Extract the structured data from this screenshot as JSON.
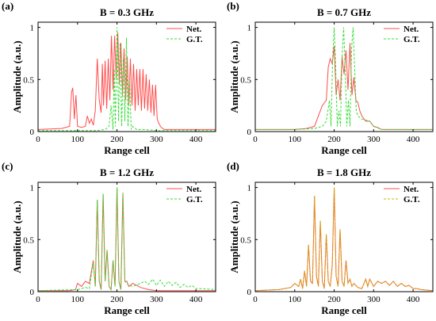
{
  "chart_data": [
    {
      "type": "line",
      "panel_label": "(a)",
      "title": "B = 0.3 GHz",
      "xlabel": "Range cell",
      "ylabel": "Amplitude (a.u.)",
      "xlim": [
        0,
        450
      ],
      "ylim": [
        0,
        1.05
      ],
      "xticks": [
        "0",
        "100",
        "200",
        "300",
        "400"
      ],
      "yticks": [
        "0",
        "0.5",
        "1"
      ],
      "legend_position": "top-right",
      "colors": {
        "net": "#ff4d4d",
        "gt": "#33dd33"
      },
      "series": [
        {
          "name": "Net.",
          "style": "solid",
          "x": [
            0,
            60,
            80,
            85,
            88,
            92,
            96,
            100,
            110,
            120,
            125,
            130,
            135,
            140,
            145,
            150,
            155,
            160,
            163,
            166,
            170,
            174,
            178,
            182,
            186,
            190,
            194,
            198,
            202,
            206,
            210,
            214,
            218,
            222,
            226,
            230,
            234,
            238,
            242,
            246,
            250,
            254,
            258,
            262,
            266,
            270,
            274,
            278,
            282,
            286,
            290,
            294,
            298,
            302,
            306,
            312,
            320,
            450
          ],
          "y": [
            0.02,
            0.03,
            0.05,
            0.38,
            0.42,
            0.12,
            0.35,
            0.05,
            0.04,
            0.05,
            0.15,
            0.08,
            0.12,
            0.06,
            0.2,
            0.7,
            0.3,
            0.18,
            0.65,
            0.25,
            0.68,
            0.22,
            0.7,
            0.3,
            0.92,
            0.4,
            0.92,
            0.5,
            0.95,
            0.45,
            0.85,
            0.35,
            0.8,
            0.3,
            0.72,
            0.25,
            0.7,
            0.25,
            0.65,
            0.2,
            0.6,
            0.25,
            0.6,
            0.2,
            0.6,
            0.22,
            0.55,
            0.2,
            0.5,
            0.18,
            0.45,
            0.15,
            0.45,
            0.12,
            0.08,
            0.04,
            0.02,
            0.02
          ]
        },
        {
          "name": "G.T.",
          "style": "dashed",
          "x": [
            0,
            150,
            170,
            180,
            185,
            190,
            193,
            196,
            200,
            204,
            208,
            212,
            216,
            220,
            224,
            228,
            232,
            236,
            240,
            250,
            270,
            300,
            450
          ],
          "y": [
            0.01,
            0.01,
            0.02,
            0.05,
            0.25,
            0.02,
            0.6,
            0.05,
            1.0,
            0.1,
            0.85,
            0.05,
            0.7,
            0.1,
            0.9,
            0.05,
            0.5,
            0.02,
            0.05,
            0.02,
            0.02,
            0.01,
            0.01
          ]
        }
      ]
    },
    {
      "type": "line",
      "panel_label": "(b)",
      "title": "B = 0.7 GHz",
      "xlabel": "Range cell",
      "ylabel": "Amplitude (a.u.)",
      "xlim": [
        0,
        450
      ],
      "ylim": [
        0,
        1.05
      ],
      "xticks": [
        "0",
        "100",
        "200",
        "300",
        "400"
      ],
      "yticks": [
        "0",
        "0.5",
        "1"
      ],
      "legend_position": "top-right",
      "colors": {
        "net": "#ff4d4d",
        "gt": "#33dd33"
      },
      "series": [
        {
          "name": "Net.",
          "style": "solid",
          "x": [
            0,
            100,
            130,
            150,
            160,
            170,
            180,
            185,
            190,
            195,
            200,
            205,
            210,
            215,
            220,
            225,
            230,
            235,
            240,
            245,
            250,
            255,
            260,
            265,
            270,
            280,
            290,
            300,
            310,
            320,
            450
          ],
          "y": [
            0.02,
            0.02,
            0.03,
            0.05,
            0.15,
            0.25,
            0.3,
            0.62,
            0.7,
            0.65,
            0.82,
            0.35,
            0.5,
            0.3,
            0.72,
            0.55,
            0.78,
            0.4,
            0.85,
            0.35,
            0.52,
            0.3,
            0.28,
            0.2,
            0.15,
            0.1,
            0.1,
            0.05,
            0.04,
            0.02,
            0.02
          ]
        },
        {
          "name": "G.T.",
          "style": "dashed",
          "x": [
            0,
            100,
            150,
            170,
            180,
            188,
            192,
            196,
            200,
            204,
            208,
            212,
            216,
            220,
            224,
            228,
            232,
            236,
            240,
            244,
            248,
            252,
            256,
            260,
            270,
            290,
            300,
            320,
            450
          ],
          "y": [
            0.02,
            0.02,
            0.03,
            0.05,
            0.1,
            0.3,
            0.05,
            0.7,
            1.0,
            0.6,
            0.05,
            0.2,
            0.05,
            0.7,
            1.0,
            0.6,
            0.05,
            0.3,
            0.05,
            0.8,
            1.0,
            0.6,
            0.2,
            0.15,
            0.12,
            0.1,
            0.05,
            0.02,
            0.02
          ]
        }
      ]
    },
    {
      "type": "line",
      "panel_label": "(c)",
      "title": "B = 1.2 GHz",
      "xlabel": "Range cell",
      "ylabel": "Amplitude (a.u.)",
      "xlim": [
        0,
        450
      ],
      "ylim": [
        0,
        1.05
      ],
      "xticks": [
        "0",
        "100",
        "200",
        "300",
        "400"
      ],
      "yticks": [
        "0",
        "0.5",
        "1"
      ],
      "legend_position": "top-right",
      "colors": {
        "net": "#ff4d4d",
        "gt": "#33dd33"
      },
      "series": [
        {
          "name": "Net.",
          "style": "solid",
          "x": [
            0,
            80,
            95,
            100,
            110,
            120,
            130,
            140,
            145,
            150,
            155,
            160,
            165,
            170,
            175,
            180,
            185,
            190,
            195,
            200,
            205,
            210,
            215,
            220,
            225,
            230,
            240,
            250,
            260,
            280,
            300,
            450
          ],
          "y": [
            0.01,
            0.01,
            0.02,
            0.08,
            0.05,
            0.1,
            0.08,
            0.3,
            0.05,
            0.88,
            0.1,
            0.02,
            0.94,
            0.1,
            0.4,
            0.05,
            0.02,
            0.3,
            0.05,
            1.0,
            0.1,
            0.02,
            0.95,
            0.1,
            0.1,
            0.05,
            0.08,
            0.06,
            0.04,
            0.02,
            0.01,
            0.01
          ]
        },
        {
          "name": "G.T.",
          "style": "dashed",
          "x": [
            0,
            100,
            120,
            130,
            140,
            145,
            150,
            155,
            160,
            165,
            170,
            175,
            180,
            185,
            190,
            195,
            200,
            205,
            210,
            215,
            220,
            225,
            230,
            240,
            260,
            270,
            280,
            290,
            300,
            310,
            320,
            330,
            340,
            350,
            360,
            370,
            380,
            390,
            400,
            410,
            450
          ],
          "y": [
            0.01,
            0.02,
            0.04,
            0.03,
            0.28,
            0.05,
            0.88,
            0.1,
            0.02,
            0.94,
            0.1,
            0.4,
            0.05,
            0.02,
            0.3,
            0.05,
            1.0,
            0.1,
            0.02,
            0.95,
            0.1,
            0.08,
            0.06,
            0.05,
            0.08,
            0.1,
            0.07,
            0.12,
            0.06,
            0.11,
            0.05,
            0.1,
            0.06,
            0.09,
            0.04,
            0.07,
            0.04,
            0.06,
            0.03,
            0.03,
            0.02
          ]
        }
      ]
    },
    {
      "type": "line",
      "panel_label": "(d)",
      "title": "B = 1.8 GHz",
      "xlabel": "Range cell",
      "ylabel": "Amplitude (a.u.)",
      "xlim": [
        0,
        450
      ],
      "ylim": [
        0,
        1.05
      ],
      "xticks": [
        "0",
        "100",
        "200",
        "300",
        "400"
      ],
      "yticks": [
        "0",
        "0.5",
        "1"
      ],
      "legend_position": "top-right",
      "colors": {
        "net": "#ff4d4d",
        "gt": "#c8b400"
      },
      "series": [
        {
          "name": "Net.",
          "style": "solid",
          "x": [
            0,
            60,
            90,
            100,
            110,
            115,
            120,
            125,
            130,
            135,
            140,
            145,
            150,
            155,
            160,
            165,
            170,
            175,
            180,
            185,
            190,
            195,
            200,
            205,
            210,
            215,
            220,
            225,
            230,
            235,
            240,
            245,
            250,
            260,
            270,
            280,
            285,
            290,
            300,
            310,
            320,
            330,
            340,
            350,
            360,
            370,
            380,
            390,
            400,
            410,
            420,
            450
          ],
          "y": [
            0.01,
            0.02,
            0.04,
            0.08,
            0.05,
            0.12,
            0.03,
            0.2,
            0.05,
            0.45,
            0.1,
            0.08,
            0.92,
            0.15,
            0.05,
            0.68,
            0.1,
            0.03,
            0.55,
            0.1,
            0.05,
            0.25,
            1.0,
            0.15,
            0.05,
            0.6,
            0.1,
            0.05,
            0.3,
            0.08,
            0.12,
            0.05,
            0.08,
            0.04,
            0.03,
            0.12,
            0.05,
            0.12,
            0.05,
            0.1,
            0.08,
            0.1,
            0.06,
            0.1,
            0.05,
            0.08,
            0.05,
            0.06,
            0.03,
            0.03,
            0.02,
            0.01
          ]
        },
        {
          "name": "G.T.",
          "style": "dashed",
          "x": [
            0,
            60,
            90,
            100,
            110,
            115,
            120,
            125,
            130,
            135,
            140,
            145,
            150,
            155,
            160,
            165,
            170,
            175,
            180,
            185,
            190,
            195,
            200,
            205,
            210,
            215,
            220,
            225,
            230,
            235,
            240,
            245,
            250,
            260,
            270,
            280,
            285,
            290,
            300,
            310,
            320,
            330,
            340,
            350,
            360,
            370,
            380,
            390,
            400,
            410,
            420,
            450
          ],
          "y": [
            0.01,
            0.02,
            0.04,
            0.08,
            0.05,
            0.12,
            0.03,
            0.2,
            0.05,
            0.45,
            0.1,
            0.08,
            0.92,
            0.15,
            0.05,
            0.68,
            0.1,
            0.03,
            0.55,
            0.1,
            0.05,
            0.25,
            1.0,
            0.15,
            0.05,
            0.6,
            0.1,
            0.05,
            0.3,
            0.08,
            0.12,
            0.05,
            0.08,
            0.04,
            0.03,
            0.12,
            0.05,
            0.12,
            0.05,
            0.1,
            0.08,
            0.1,
            0.06,
            0.1,
            0.05,
            0.08,
            0.05,
            0.06,
            0.03,
            0.03,
            0.02,
            0.01
          ]
        }
      ]
    }
  ]
}
